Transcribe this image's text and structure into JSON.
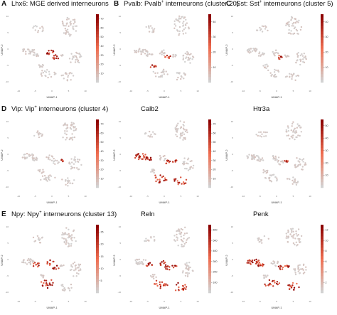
{
  "figure": {
    "axis_x_label": "UMAP-1",
    "axis_y_label": "UMAP-2",
    "low_color": "#d2d2d2",
    "high_color": "#8b0000"
  },
  "chart_data": [
    {
      "type": "scatter",
      "panel_letter": "A",
      "gene": "Lhx6",
      "title_main": "Lhx6: MGE derived interneurons",
      "title_sup": "",
      "title_tail": "",
      "colorbar_ticks": [
        10,
        20,
        30,
        40,
        50,
        60,
        70
      ],
      "colorbar_max": 75,
      "highlight": [
        "m1",
        "m2"
      ],
      "xlabel": "UMAP-1",
      "ylabel": "UMAP-2",
      "x_ticks": [
        "-10",
        "-5",
        "0",
        "5",
        "10"
      ],
      "y_ticks": [
        "-10",
        "-5",
        "0",
        "5",
        "10"
      ]
    },
    {
      "type": "scatter",
      "panel_letter": "B",
      "gene": "Pvalb",
      "title_main": "Pvalb: Pvalb",
      "title_sup": "+",
      "title_tail": " interneurons (cluster 20)",
      "colorbar_ticks": [
        10,
        20,
        30,
        40
      ],
      "colorbar_max": 45,
      "highlight": [
        "m2",
        "l3"
      ],
      "xlabel": "UMAP-1",
      "ylabel": "UMAP-2",
      "x_ticks": [
        "-10",
        "-5",
        "0",
        "5",
        "10"
      ],
      "y_ticks": [
        "-10",
        "-5",
        "0",
        "5",
        "10"
      ]
    },
    {
      "type": "scatter",
      "panel_letter": "C",
      "gene": "Sst",
      "title_main": "Sst: Sst",
      "title_sup": "+",
      "title_tail": " interneurons (cluster 5)",
      "colorbar_ticks": [
        10,
        20,
        30,
        40
      ],
      "colorbar_max": 45,
      "highlight": [
        "m2"
      ],
      "xlabel": "UMAP-1",
      "ylabel": "UMAP-2",
      "x_ticks": [
        "-10",
        "-5",
        "0",
        "5",
        "10"
      ],
      "y_ticks": [
        "-10",
        "-5",
        "0",
        "5",
        "10"
      ]
    },
    {
      "type": "scatter",
      "panel_letter": "D",
      "gene": "Vip",
      "title_main": "Vip: Vip",
      "title_sup": "+",
      "title_tail": " interneurons (cluster 4)",
      "colorbar_ticks": [
        10,
        20,
        30,
        40,
        50,
        60,
        70
      ],
      "colorbar_max": 75,
      "highlight": [
        "m3"
      ],
      "xlabel": "UMAP-1",
      "ylabel": "UMAP-2",
      "x_ticks": [
        "-10",
        "-5",
        "0",
        "5",
        "10"
      ],
      "y_ticks": [
        "-10",
        "-5",
        "0",
        "5",
        "10"
      ]
    },
    {
      "type": "scatter",
      "panel_letter": "",
      "gene": "Calb2",
      "title_main": "Calb2",
      "title_sup": "",
      "title_tail": "",
      "colorbar_ticks": [
        10,
        20,
        30,
        40,
        50,
        60,
        70
      ],
      "colorbar_max": 75,
      "highlight": [
        "l1",
        "l2",
        "m2",
        "m3",
        "b1",
        "b2"
      ],
      "xlabel": "UMAP-1",
      "ylabel": "UMAP-2",
      "x_ticks": [
        "-10",
        "-5",
        "0",
        "5",
        "10"
      ],
      "y_ticks": [
        "-10",
        "-5",
        "0",
        "5",
        "10"
      ]
    },
    {
      "type": "scatter",
      "panel_letter": "",
      "gene": "Htr3a",
      "title_main": "Htr3a",
      "title_sup": "",
      "title_tail": "",
      "colorbar_ticks": [
        10,
        20,
        30,
        40,
        50
      ],
      "colorbar_max": 55,
      "highlight": [
        "m3"
      ],
      "xlabel": "UMAP-1",
      "ylabel": "UMAP-2",
      "x_ticks": [
        "-10",
        "-5",
        "0",
        "5",
        "10"
      ],
      "y_ticks": [
        "-10",
        "-5",
        "0",
        "5",
        "10"
      ]
    },
    {
      "type": "scatter",
      "panel_letter": "E",
      "gene": "Npy",
      "title_main": "Npy: Npy",
      "title_sup": "+",
      "title_tail": " interneurons (cluster 13)",
      "colorbar_ticks": [
        5,
        10,
        15,
        20,
        25
      ],
      "colorbar_max": 28,
      "highlight": [
        "m1",
        "m2",
        "l2",
        "b1"
      ],
      "xlabel": "UMAP-1",
      "ylabel": "UMAP-2",
      "x_ticks": [
        "-10",
        "-5",
        "0",
        "5",
        "10"
      ],
      "y_ticks": [
        "-10",
        "-5",
        "0",
        "5",
        "10"
      ]
    },
    {
      "type": "scatter",
      "panel_letter": "",
      "gene": "Reln",
      "title_main": "Reln",
      "title_sup": "",
      "title_tail": "",
      "colorbar_ticks": [
        100,
        200,
        300,
        400,
        500,
        600
      ],
      "colorbar_max": 650,
      "highlight": [
        "m1",
        "m2",
        "m3",
        "b1",
        "b2",
        "l2"
      ],
      "xlabel": "UMAP-1",
      "ylabel": "UMAP-2",
      "x_ticks": [
        "-10",
        "-5",
        "0",
        "5",
        "10"
      ],
      "y_ticks": [
        "-10",
        "-5",
        "0",
        "5",
        "10"
      ]
    },
    {
      "type": "scatter",
      "panel_letter": "",
      "gene": "Penk",
      "title_main": "Penk",
      "title_sup": "",
      "title_tail": "",
      "colorbar_ticks": [
        2,
        4,
        6,
        8,
        10,
        12
      ],
      "colorbar_max": 13,
      "highlight": [
        "l1",
        "l2",
        "b1",
        "b2",
        "m2",
        "m3"
      ],
      "xlabel": "UMAP-1",
      "ylabel": "UMAP-2",
      "x_ticks": [
        "-10",
        "-5",
        "0",
        "5",
        "10"
      ],
      "y_ticks": [
        "-10",
        "-5",
        "0",
        "5",
        "10"
      ]
    }
  ]
}
